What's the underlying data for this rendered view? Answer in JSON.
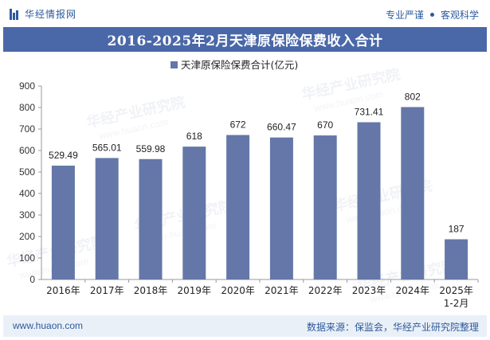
{
  "header": {
    "brand_name": "华经情报网",
    "tagline_left": "专业严谨",
    "tagline_right": "客观科学"
  },
  "chart_title": "2016-2025年2月天津原保险保费收入合计",
  "watermark_text": "华经产业研究院",
  "watermark_url": "www.huaon.com",
  "footer": {
    "url": "www.huaon.com",
    "source": "数据来源：保监会，华经产业研究院整理"
  },
  "colors": {
    "bar": "#6477a8",
    "title_bg": "#4a68a8",
    "brand": "#2d5a9b"
  },
  "chart_data": {
    "type": "bar",
    "categories": [
      "2016年",
      "2017年",
      "2018年",
      "2019年",
      "2020年",
      "2021年",
      "2022年",
      "2023年",
      "2024年",
      "2025年\n1-2月"
    ],
    "series": [
      {
        "name": "天津原保险保费合计(亿元)",
        "values": [
          529.49,
          565.01,
          559.98,
          618,
          672,
          660.47,
          670,
          731.41,
          802,
          187
        ],
        "labels": [
          "529.49",
          "565.01",
          "559.98",
          "618",
          "672",
          "660.47",
          "670",
          "731.41",
          "802",
          "187"
        ]
      }
    ],
    "ylim": [
      0,
      900
    ],
    "yticks": [
      0,
      100,
      200,
      300,
      400,
      500,
      600,
      700,
      800,
      900
    ],
    "legend_position": "top-center",
    "grid": false
  }
}
